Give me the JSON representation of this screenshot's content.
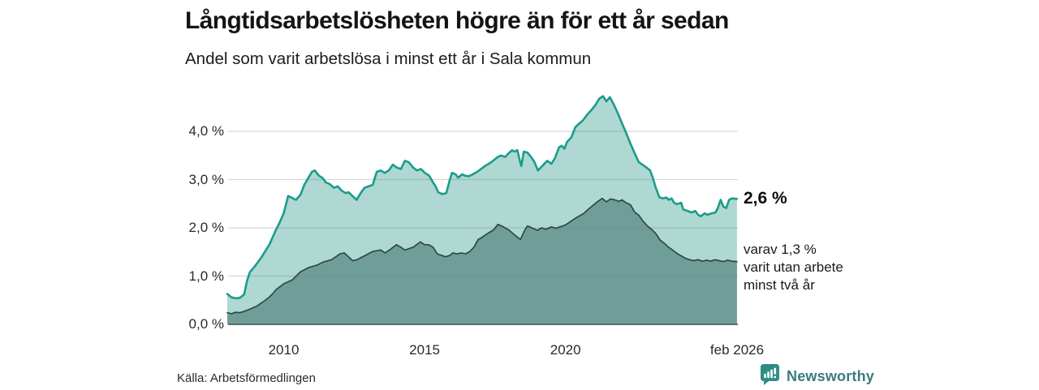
{
  "header": {
    "title": "Långtidsarbetslösheten högre än för ett år sedan",
    "subtitle": "Andel som varit arbetslösa i minst ett år i Sala kommun"
  },
  "annotations": {
    "total_end_label": "2,6 %",
    "breakdown_lines": [
      "varav 1,3 %",
      "varit utan arbete",
      "minst två år"
    ]
  },
  "footer": {
    "source": "Källa: Arbetsförmedlingen",
    "brand_name": "Newsworthy",
    "brand_icon": "newsworthy-speech-bubble-bar-chart-icon",
    "brand_icon_color": "#2e8c85",
    "brand_text_color": "#3a7b80"
  },
  "chart_data": {
    "type": "area",
    "title": "Långtidsarbetslösheten högre än för ett år sedan",
    "subtitle": "Andel som varit arbetslösa i minst ett år i Sala kommun",
    "xlabel": "",
    "ylabel": "",
    "grid": true,
    "legend_position": "direct-labels-right",
    "x_axis": {
      "min": 2008.0,
      "max": 2026.083,
      "ticks": [
        {
          "value": 2010,
          "label": "2010"
        },
        {
          "value": 2015,
          "label": "2015"
        },
        {
          "value": 2020,
          "label": "2020"
        },
        {
          "value": 2026.083,
          "label": "feb 2026"
        }
      ]
    },
    "y_axis": {
      "min": 0,
      "max": 4.9,
      "unit": "%",
      "ticks": [
        {
          "value": 0,
          "label": "0,0 %"
        },
        {
          "value": 1,
          "label": "1,0 %"
        },
        {
          "value": 2,
          "label": "2,0 %"
        },
        {
          "value": 3,
          "label": "3,0 %"
        },
        {
          "value": 4,
          "label": "4,0 %"
        }
      ]
    },
    "colors": {
      "total_line": "#1a9c8c",
      "total_fill": "#aed8d1",
      "two_years_line": "#2d4844",
      "two_years_fill": "#6f9e98",
      "gridline": "rgba(120,126,138,0.32)",
      "baseline": "#5e6d69"
    },
    "series": [
      {
        "name": "Arbetslösa minst ett år (andel, totalt)",
        "end_value_label": "2,6 %",
        "line_color": "#1a9c8c",
        "fill_color": "#aed8d1",
        "points": [
          [
            2008.0,
            0.63
          ],
          [
            2008.15,
            0.56
          ],
          [
            2008.3,
            0.54
          ],
          [
            2008.45,
            0.55
          ],
          [
            2008.6,
            0.62
          ],
          [
            2008.7,
            0.9
          ],
          [
            2008.8,
            1.08
          ],
          [
            2008.9,
            1.15
          ],
          [
            2009.0,
            1.22
          ],
          [
            2009.1,
            1.3
          ],
          [
            2009.2,
            1.38
          ],
          [
            2009.35,
            1.52
          ],
          [
            2009.5,
            1.66
          ],
          [
            2009.72,
            1.95
          ],
          [
            2009.85,
            2.1
          ],
          [
            2010.0,
            2.3
          ],
          [
            2010.16,
            2.66
          ],
          [
            2010.3,
            2.62
          ],
          [
            2010.44,
            2.58
          ],
          [
            2010.6,
            2.69
          ],
          [
            2010.73,
            2.89
          ],
          [
            2010.87,
            3.03
          ],
          [
            2011.0,
            3.16
          ],
          [
            2011.1,
            3.19
          ],
          [
            2011.25,
            3.08
          ],
          [
            2011.39,
            3.03
          ],
          [
            2011.5,
            2.94
          ],
          [
            2011.63,
            2.91
          ],
          [
            2011.78,
            2.83
          ],
          [
            2011.92,
            2.86
          ],
          [
            2012.06,
            2.77
          ],
          [
            2012.2,
            2.72
          ],
          [
            2012.3,
            2.74
          ],
          [
            2012.44,
            2.66
          ],
          [
            2012.59,
            2.58
          ],
          [
            2012.73,
            2.72
          ],
          [
            2012.87,
            2.83
          ],
          [
            2013.01,
            2.86
          ],
          [
            2013.16,
            2.89
          ],
          [
            2013.3,
            3.16
          ],
          [
            2013.44,
            3.19
          ],
          [
            2013.58,
            3.14
          ],
          [
            2013.73,
            3.19
          ],
          [
            2013.87,
            3.31
          ],
          [
            2014.01,
            3.25
          ],
          [
            2014.16,
            3.22
          ],
          [
            2014.3,
            3.39
          ],
          [
            2014.44,
            3.36
          ],
          [
            2014.59,
            3.25
          ],
          [
            2014.73,
            3.19
          ],
          [
            2014.87,
            3.22
          ],
          [
            2015.01,
            3.14
          ],
          [
            2015.16,
            3.08
          ],
          [
            2015.29,
            2.95
          ],
          [
            2015.39,
            2.86
          ],
          [
            2015.48,
            2.74
          ],
          [
            2015.62,
            2.7
          ],
          [
            2015.77,
            2.72
          ],
          [
            2015.88,
            2.97
          ],
          [
            2015.97,
            3.14
          ],
          [
            2016.1,
            3.11
          ],
          [
            2016.19,
            3.04
          ],
          [
            2016.33,
            3.11
          ],
          [
            2016.43,
            3.08
          ],
          [
            2016.57,
            3.07
          ],
          [
            2016.71,
            3.11
          ],
          [
            2016.86,
            3.16
          ],
          [
            2017.0,
            3.22
          ],
          [
            2017.14,
            3.28
          ],
          [
            2017.28,
            3.33
          ],
          [
            2017.43,
            3.39
          ],
          [
            2017.57,
            3.46
          ],
          [
            2017.71,
            3.5
          ],
          [
            2017.86,
            3.47
          ],
          [
            2017.95,
            3.53
          ],
          [
            2018.1,
            3.61
          ],
          [
            2018.19,
            3.58
          ],
          [
            2018.29,
            3.61
          ],
          [
            2018.38,
            3.39
          ],
          [
            2018.43,
            3.28
          ],
          [
            2018.52,
            3.58
          ],
          [
            2018.65,
            3.56
          ],
          [
            2018.8,
            3.45
          ],
          [
            2018.9,
            3.36
          ],
          [
            2019.02,
            3.19
          ],
          [
            2019.2,
            3.3
          ],
          [
            2019.35,
            3.39
          ],
          [
            2019.5,
            3.33
          ],
          [
            2019.62,
            3.44
          ],
          [
            2019.77,
            3.67
          ],
          [
            2019.86,
            3.7
          ],
          [
            2019.96,
            3.64
          ],
          [
            2020.05,
            3.78
          ],
          [
            2020.2,
            3.87
          ],
          [
            2020.35,
            4.09
          ],
          [
            2020.5,
            4.17
          ],
          [
            2020.62,
            4.23
          ],
          [
            2020.76,
            4.34
          ],
          [
            2020.9,
            4.43
          ],
          [
            2021.05,
            4.54
          ],
          [
            2021.2,
            4.68
          ],
          [
            2021.33,
            4.73
          ],
          [
            2021.45,
            4.62
          ],
          [
            2021.57,
            4.71
          ],
          [
            2021.7,
            4.57
          ],
          [
            2021.86,
            4.37
          ],
          [
            2022.0,
            4.17
          ],
          [
            2022.14,
            3.98
          ],
          [
            2022.3,
            3.75
          ],
          [
            2022.45,
            3.55
          ],
          [
            2022.6,
            3.36
          ],
          [
            2022.8,
            3.28
          ],
          [
            2023.0,
            3.19
          ],
          [
            2023.1,
            3.03
          ],
          [
            2023.2,
            2.83
          ],
          [
            2023.33,
            2.63
          ],
          [
            2023.47,
            2.61
          ],
          [
            2023.57,
            2.63
          ],
          [
            2023.66,
            2.58
          ],
          [
            2023.76,
            2.61
          ],
          [
            2023.85,
            2.52
          ],
          [
            2023.95,
            2.49
          ],
          [
            2024.1,
            2.52
          ],
          [
            2024.18,
            2.38
          ],
          [
            2024.33,
            2.35
          ],
          [
            2024.47,
            2.32
          ],
          [
            2024.6,
            2.35
          ],
          [
            2024.7,
            2.27
          ],
          [
            2024.8,
            2.24
          ],
          [
            2024.94,
            2.3
          ],
          [
            2025.03,
            2.27
          ],
          [
            2025.18,
            2.3
          ],
          [
            2025.32,
            2.32
          ],
          [
            2025.4,
            2.41
          ],
          [
            2025.5,
            2.58
          ],
          [
            2025.6,
            2.44
          ],
          [
            2025.7,
            2.41
          ],
          [
            2025.8,
            2.58
          ],
          [
            2025.9,
            2.61
          ],
          [
            2026.08,
            2.6
          ]
        ]
      },
      {
        "name": "Varav utan arbete minst två år",
        "end_value_label": "1,3 %",
        "line_color": "#2d4844",
        "fill_color": "#6f9e98",
        "points": [
          [
            2008.0,
            0.24
          ],
          [
            2008.15,
            0.22
          ],
          [
            2008.3,
            0.25
          ],
          [
            2008.45,
            0.24
          ],
          [
            2008.6,
            0.27
          ],
          [
            2008.75,
            0.3
          ],
          [
            2008.9,
            0.34
          ],
          [
            2009.05,
            0.38
          ],
          [
            2009.2,
            0.44
          ],
          [
            2009.35,
            0.5
          ],
          [
            2009.5,
            0.57
          ],
          [
            2009.62,
            0.64
          ],
          [
            2009.73,
            0.72
          ],
          [
            2009.87,
            0.78
          ],
          [
            2010.0,
            0.84
          ],
          [
            2010.3,
            0.92
          ],
          [
            2010.6,
            1.09
          ],
          [
            2010.9,
            1.18
          ],
          [
            2011.2,
            1.23
          ],
          [
            2011.4,
            1.29
          ],
          [
            2011.7,
            1.34
          ],
          [
            2012.0,
            1.46
          ],
          [
            2012.15,
            1.48
          ],
          [
            2012.3,
            1.4
          ],
          [
            2012.45,
            1.32
          ],
          [
            2012.6,
            1.34
          ],
          [
            2012.9,
            1.43
          ],
          [
            2013.15,
            1.51
          ],
          [
            2013.45,
            1.54
          ],
          [
            2013.6,
            1.48
          ],
          [
            2013.75,
            1.54
          ],
          [
            2014.0,
            1.65
          ],
          [
            2014.15,
            1.6
          ],
          [
            2014.3,
            1.54
          ],
          [
            2014.6,
            1.6
          ],
          [
            2014.85,
            1.71
          ],
          [
            2015.0,
            1.65
          ],
          [
            2015.15,
            1.65
          ],
          [
            2015.3,
            1.6
          ],
          [
            2015.45,
            1.46
          ],
          [
            2015.6,
            1.43
          ],
          [
            2015.75,
            1.4
          ],
          [
            2015.9,
            1.43
          ],
          [
            2016.0,
            1.48
          ],
          [
            2016.15,
            1.46
          ],
          [
            2016.3,
            1.48
          ],
          [
            2016.45,
            1.46
          ],
          [
            2016.6,
            1.51
          ],
          [
            2016.75,
            1.6
          ],
          [
            2016.9,
            1.76
          ],
          [
            2017.0,
            1.79
          ],
          [
            2017.15,
            1.85
          ],
          [
            2017.45,
            1.96
          ],
          [
            2017.6,
            2.07
          ],
          [
            2017.8,
            2.02
          ],
          [
            2018.0,
            1.95
          ],
          [
            2018.2,
            1.85
          ],
          [
            2018.4,
            1.76
          ],
          [
            2018.55,
            1.95
          ],
          [
            2018.65,
            2.04
          ],
          [
            2018.8,
            2.0
          ],
          [
            2019.0,
            1.95
          ],
          [
            2019.15,
            2.0
          ],
          [
            2019.3,
            1.97
          ],
          [
            2019.5,
            2.02
          ],
          [
            2019.65,
            1.99
          ],
          [
            2019.8,
            2.02
          ],
          [
            2020.0,
            2.06
          ],
          [
            2020.2,
            2.14
          ],
          [
            2020.35,
            2.2
          ],
          [
            2020.5,
            2.25
          ],
          [
            2020.65,
            2.3
          ],
          [
            2020.8,
            2.38
          ],
          [
            2021.0,
            2.48
          ],
          [
            2021.15,
            2.55
          ],
          [
            2021.3,
            2.61
          ],
          [
            2021.45,
            2.54
          ],
          [
            2021.6,
            2.6
          ],
          [
            2021.75,
            2.58
          ],
          [
            2021.9,
            2.55
          ],
          [
            2022.0,
            2.58
          ],
          [
            2022.15,
            2.52
          ],
          [
            2022.3,
            2.48
          ],
          [
            2022.45,
            2.33
          ],
          [
            2022.6,
            2.26
          ],
          [
            2022.75,
            2.14
          ],
          [
            2022.9,
            2.04
          ],
          [
            2023.05,
            1.97
          ],
          [
            2023.2,
            1.88
          ],
          [
            2023.35,
            1.75
          ],
          [
            2023.5,
            1.68
          ],
          [
            2023.65,
            1.6
          ],
          [
            2023.8,
            1.54
          ],
          [
            2023.95,
            1.47
          ],
          [
            2024.1,
            1.42
          ],
          [
            2024.25,
            1.37
          ],
          [
            2024.4,
            1.34
          ],
          [
            2024.55,
            1.32
          ],
          [
            2024.7,
            1.34
          ],
          [
            2024.85,
            1.31
          ],
          [
            2025.0,
            1.33
          ],
          [
            2025.15,
            1.31
          ],
          [
            2025.3,
            1.34
          ],
          [
            2025.45,
            1.32
          ],
          [
            2025.6,
            1.3
          ],
          [
            2025.75,
            1.33
          ],
          [
            2025.9,
            1.31
          ],
          [
            2026.08,
            1.3
          ]
        ]
      }
    ]
  }
}
